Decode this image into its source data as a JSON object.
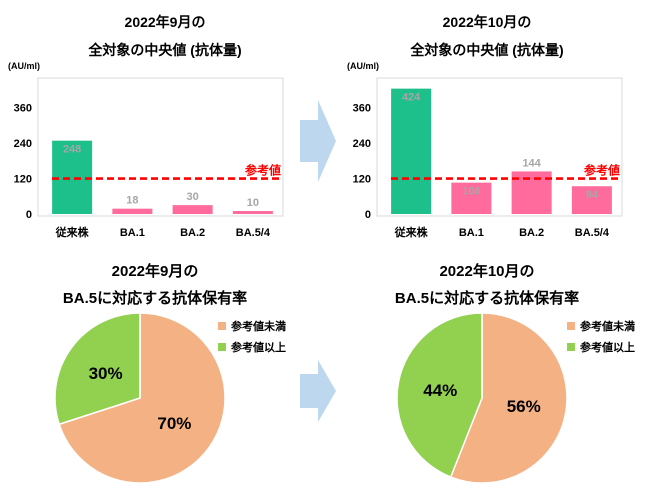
{
  "decor": {
    "arrow_color": "#bdd7ee"
  },
  "chart_data": [
    {
      "type": "bar",
      "title_lines": [
        "2022年9月の",
        "全対象の中央値 (抗体量)"
      ],
      "ylabel": "(AU/ml)",
      "categories": [
        "従来株",
        "BA.1",
        "BA.2",
        "BA.5/4"
      ],
      "values": [
        248,
        18,
        30,
        10
      ],
      "bar_colors": [
        "#1dbf8a",
        "#ff6b9d",
        "#ff6b9d",
        "#ff6b9d"
      ],
      "data_label_color": "#a6a6a6",
      "data_label_position": [
        "inside",
        "above",
        "above",
        "above"
      ],
      "yticks": [
        0,
        120,
        240,
        360
      ],
      "ylim": [
        0,
        460
      ],
      "grid": false,
      "reference_line": {
        "value": 120,
        "label": "参考値",
        "color": "#ff0000",
        "style": "dashed"
      }
    },
    {
      "type": "bar",
      "title_lines": [
        "2022年10月の",
        "全対象の中央値 (抗体量)"
      ],
      "ylabel": "(AU/ml)",
      "categories": [
        "従来株",
        "BA.1",
        "BA.2",
        "BA.5/4"
      ],
      "values": [
        424,
        106,
        144,
        94
      ],
      "bar_colors": [
        "#1dbf8a",
        "#ff6b9d",
        "#ff6b9d",
        "#ff6b9d"
      ],
      "data_label_color": "#a6a6a6",
      "data_label_position": [
        "inside",
        "inside",
        "above",
        "inside"
      ],
      "yticks": [
        0,
        120,
        240,
        360
      ],
      "ylim": [
        0,
        460
      ],
      "grid": false,
      "reference_line": {
        "value": 120,
        "label": "参考値",
        "color": "#ff0000",
        "style": "dashed"
      }
    },
    {
      "type": "pie",
      "title_lines": [
        "2022年9月の",
        "BA.5に対応する抗体保有率"
      ],
      "slices": [
        {
          "label": "参考値未満",
          "value": 70,
          "value_label": "70%",
          "color": "#f4b183"
        },
        {
          "label": "参考値以上",
          "value": 30,
          "value_label": "30%",
          "color": "#92d050"
        }
      ],
      "legend": "top-right"
    },
    {
      "type": "pie",
      "title_lines": [
        "2022年10月の",
        "BA.5に対応する抗体保有率"
      ],
      "slices": [
        {
          "label": "参考値未満",
          "value": 56,
          "value_label": "56%",
          "color": "#f4b183"
        },
        {
          "label": "参考値以上",
          "value": 44,
          "value_label": "44%",
          "color": "#92d050"
        }
      ],
      "legend": "top-right"
    }
  ]
}
